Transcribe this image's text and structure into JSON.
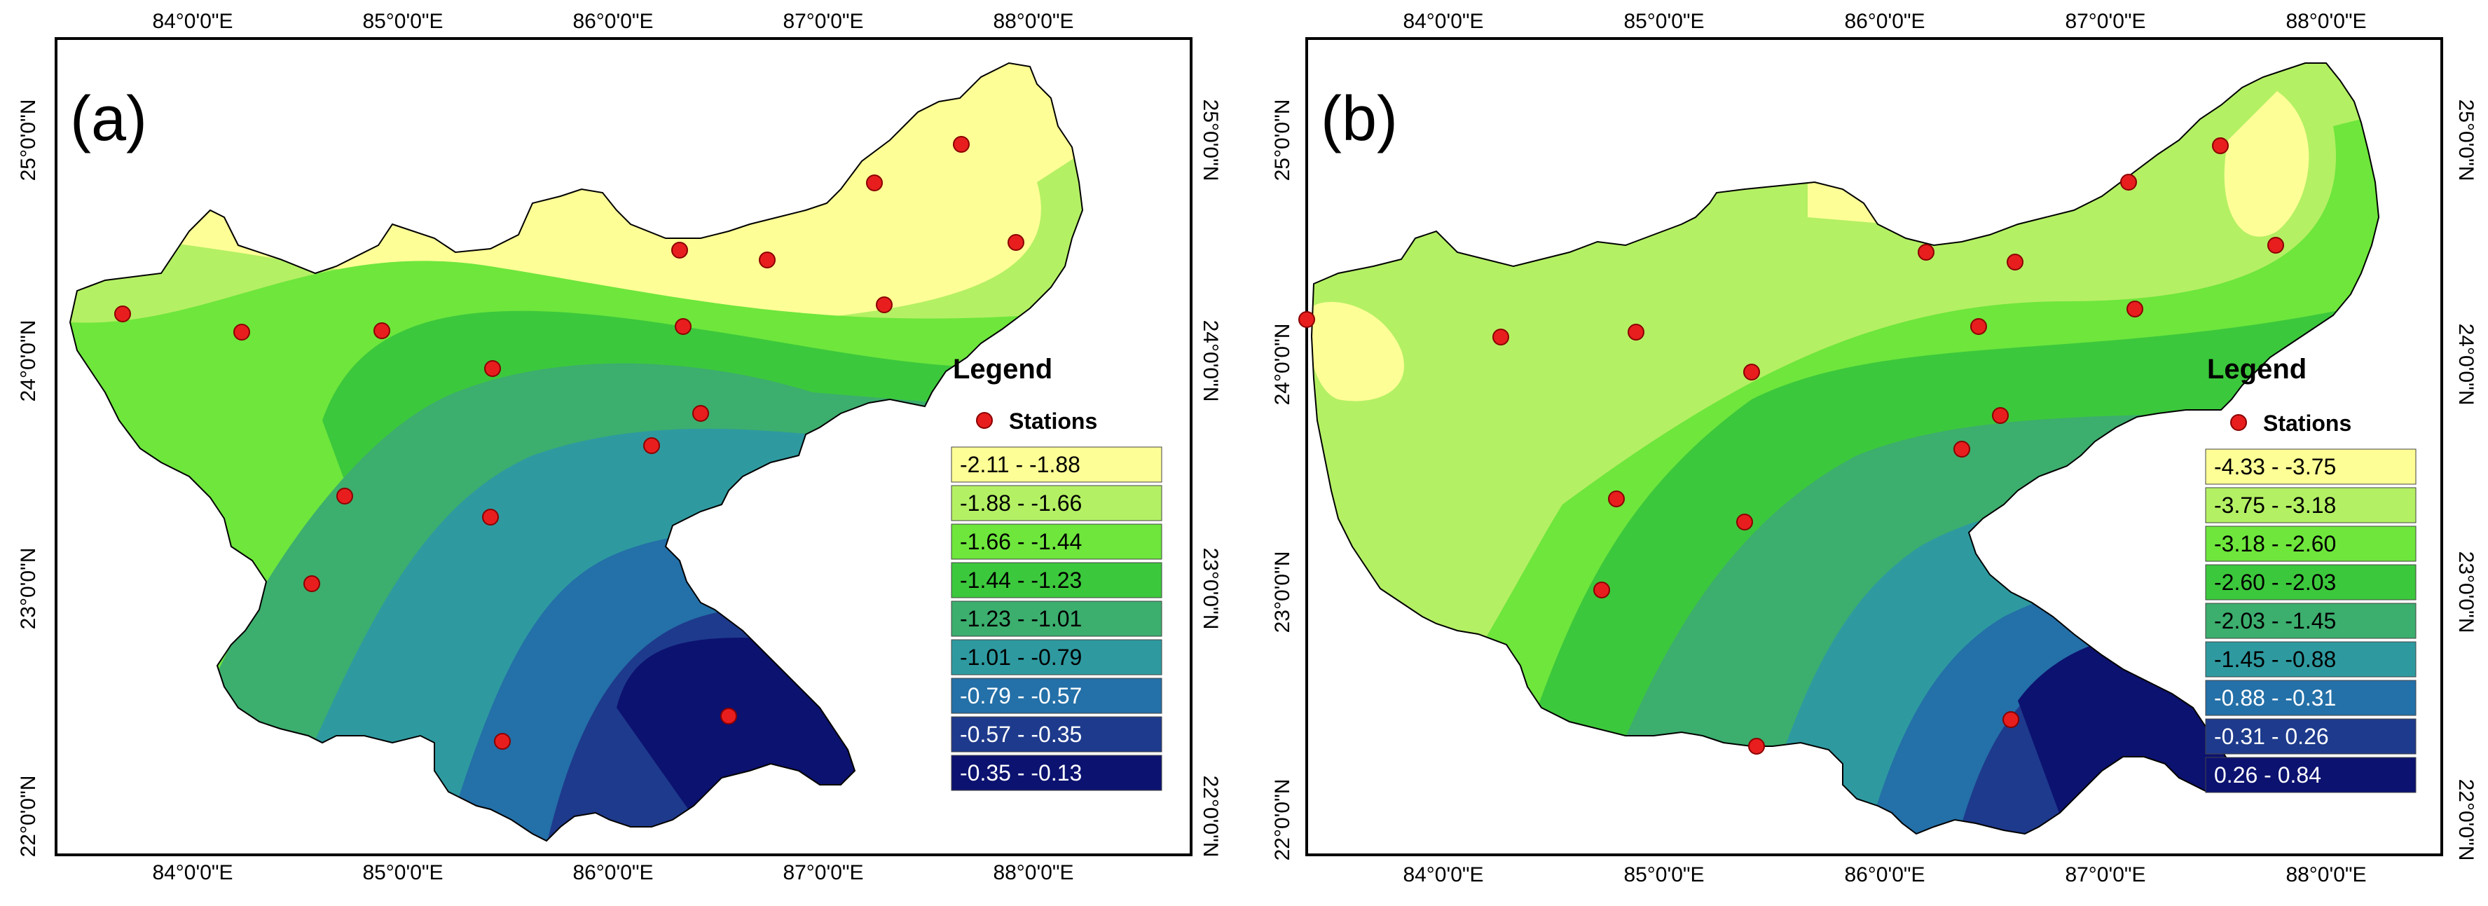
{
  "panels": [
    {
      "label": "(a)",
      "top_labels": [
        "84°0'0\"E",
        "85°0'0\"E",
        "86°0'0\"E",
        "87°0'0\"E",
        "88°0'0\"E"
      ],
      "bottom_labels": [
        "84°0'0\"E",
        "85°0'0\"E",
        "86°0'0\"E",
        "87°0'0\"E",
        "88°0'0\"E"
      ],
      "left_labels": [
        "25°0'0\"N",
        "24°0'0\"N",
        "23°0'0\"N",
        "22°0'0\"N"
      ],
      "right_labels": [
        "25°0'0\"N",
        "24°0'0\"N",
        "23°0'0\"N",
        "22°0'0\"N"
      ],
      "legend": {
        "title": "Legend",
        "stations_label": "Stations",
        "classes": [
          "-2.11 - -1.88",
          "-1.88 - -1.66",
          "-1.66 - -1.44",
          "-1.44 - -1.23",
          "-1.23 - -1.01",
          "-1.01 - -0.79",
          "-0.79 - -0.57",
          "-0.57 - -0.35",
          "-0.35 - -0.13"
        ]
      }
    },
    {
      "label": "(b)",
      "top_labels": [
        "84°0'0\"E",
        "85°0'0\"E",
        "86°0'0\"E",
        "87°0'0\"E",
        "88°0'0\"E"
      ],
      "bottom_labels": [
        "84°0'0\"E",
        "85°0'0\"E",
        "86°0'0\"E",
        "87°0'0\"E",
        "88°0'0\"E"
      ],
      "left_labels": [
        "25°0'0\"N",
        "24°0'0\"N",
        "23°0'0\"N",
        "22°0'0\"N"
      ],
      "right_labels": [
        "25°0'0\"N",
        "24°0'0\"N",
        "23°0'0\"N",
        "22°0'0\"N"
      ],
      "legend": {
        "title": "Legend",
        "stations_label": "Stations",
        "classes": [
          "-4.33 - -3.75",
          "-3.75 - -3.18",
          "-3.18 - -2.60",
          "-2.60 - -2.03",
          "-2.03 - -1.45",
          "-1.45 - -0.88",
          "-0.88 - -0.31",
          "-0.31 - 0.26",
          "0.26 - 0.84"
        ]
      }
    }
  ],
  "colors": {
    "classes": [
      "#fefe96",
      "#b4f064",
      "#6ee63c",
      "#3cc83c",
      "#3cae6e",
      "#2e9aa0",
      "#2470a8",
      "#1e3a8c",
      "#0c1270"
    ],
    "station": "#e81e1e",
    "frame": "#000000"
  }
}
